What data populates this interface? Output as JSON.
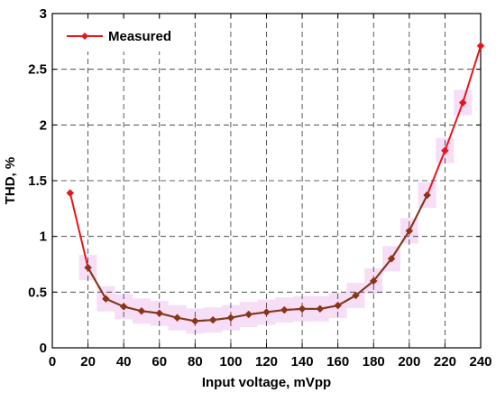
{
  "chart_data": {
    "type": "line",
    "title": "",
    "xlabel": "Input voltage, mVpp",
    "ylabel": "THD, %",
    "xlim": [
      0,
      240
    ],
    "ylim": [
      0,
      3
    ],
    "x_ticks": [
      0,
      20,
      40,
      60,
      80,
      100,
      120,
      140,
      160,
      180,
      200,
      220,
      240
    ],
    "y_ticks": [
      0,
      0.5,
      1,
      1.5,
      2,
      2.5,
      3
    ],
    "x_tick_labels": [
      "0",
      "20",
      "40",
      "60",
      "80",
      "100",
      "120",
      "140",
      "160",
      "180",
      "200",
      "220",
      "240"
    ],
    "y_tick_labels": [
      "0",
      "0.5",
      "1",
      "1.5",
      "2",
      "2.5",
      "3"
    ],
    "grid": true,
    "legend_position": "top-left",
    "series": [
      {
        "name": "Measured",
        "color": "#e8141b",
        "marker": "diamond",
        "x": [
          10,
          20,
          30,
          40,
          50,
          60,
          70,
          80,
          90,
          100,
          110,
          120,
          130,
          140,
          150,
          160,
          170,
          180,
          190,
          200,
          210,
          220,
          230,
          240
        ],
        "y": [
          1.39,
          0.72,
          0.44,
          0.37,
          0.33,
          0.31,
          0.27,
          0.24,
          0.25,
          0.27,
          0.3,
          0.32,
          0.34,
          0.35,
          0.35,
          0.38,
          0.47,
          0.6,
          0.8,
          1.05,
          1.37,
          1.77,
          2.2,
          2.71
        ]
      },
      {
        "color": "#7a3c1a",
        "x": [
          20,
          30,
          40,
          50,
          60,
          70,
          80,
          90,
          100,
          110,
          120,
          130,
          140,
          150,
          160,
          170,
          180,
          190,
          200,
          210
        ],
        "y": [
          0.72,
          0.44,
          0.37,
          0.33,
          0.31,
          0.27,
          0.24,
          0.25,
          0.27,
          0.3,
          0.32,
          0.34,
          0.35,
          0.35,
          0.38,
          0.47,
          0.6,
          0.8,
          1.05,
          1.37
        ]
      }
    ],
    "band_color": "#f6d8f6"
  }
}
